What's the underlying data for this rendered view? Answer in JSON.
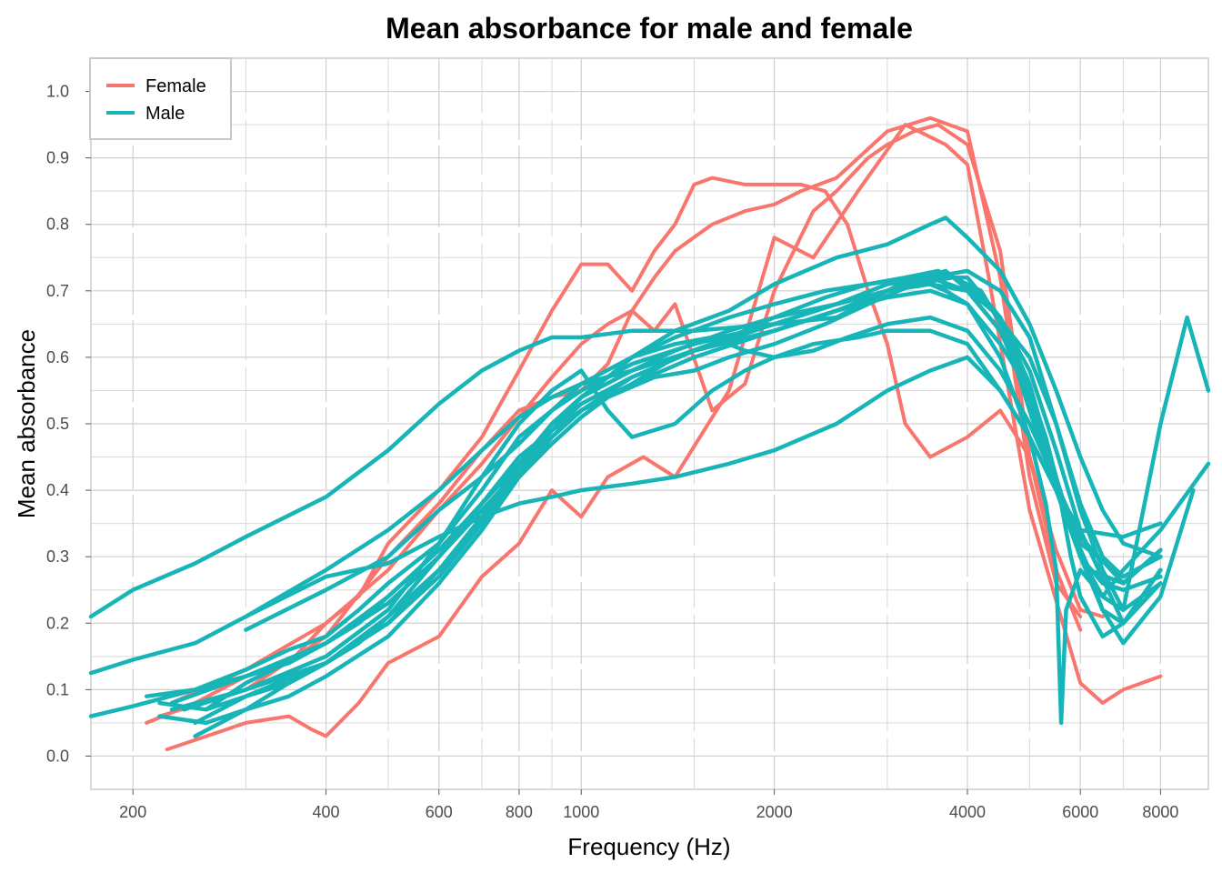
{
  "chart_data": {
    "type": "line",
    "title": "Mean absorbance for male and female",
    "xlabel": "Frequency (Hz)",
    "ylabel": "Mean absorbance",
    "x_scale": "log",
    "xlim": [
      172,
      9500
    ],
    "ylim": [
      -0.05,
      1.05
    ],
    "x_ticks": [
      200,
      400,
      600,
      800,
      1000,
      2000,
      4000,
      6000,
      8000
    ],
    "x_tick_labels": [
      "200",
      "400",
      "600",
      "800",
      "1000",
      "2000",
      "4000",
      "6000",
      "8000"
    ],
    "y_ticks": [
      0.0,
      0.1,
      0.2,
      0.3,
      0.4,
      0.5,
      0.6,
      0.7,
      0.8,
      0.9,
      1.0
    ],
    "y_tick_labels": [
      "0.0",
      "0.1",
      "0.2",
      "0.3",
      "0.4",
      "0.5",
      "0.6",
      "0.7",
      "0.8",
      "0.9",
      "1.0"
    ],
    "grid": true,
    "legend_position": "top-left",
    "colors": {
      "Female": "#F8766D",
      "Male": "#17B5B8"
    },
    "legend": [
      {
        "label": "Female",
        "color": "#F8766D"
      },
      {
        "label": "Male",
        "color": "#17B5B8"
      }
    ],
    "series": [
      {
        "group": "Female",
        "x": [
          226,
          300,
          350,
          380,
          400,
          450,
          500,
          600,
          700,
          800,
          900,
          1000,
          1100,
          1250,
          1400,
          1700,
          2000,
          2300,
          2700,
          3200,
          3700,
          4000,
          4300,
          5000,
          6000,
          6500,
          7000,
          8000
        ],
        "y": [
          0.01,
          0.05,
          0.06,
          0.04,
          0.03,
          0.08,
          0.14,
          0.18,
          0.27,
          0.32,
          0.4,
          0.36,
          0.42,
          0.45,
          0.42,
          0.55,
          0.78,
          0.75,
          0.85,
          0.95,
          0.92,
          0.89,
          0.73,
          0.37,
          0.11,
          0.08,
          0.1,
          0.12
        ]
      },
      {
        "group": "Female",
        "x": [
          210,
          250,
          300,
          350,
          400,
          450,
          500,
          600,
          700,
          800,
          900,
          1000,
          1100,
          1200,
          1300,
          1400,
          1500,
          1600,
          1800,
          2000,
          2200,
          2400,
          2600,
          2800,
          3000,
          3200,
          3500,
          4000,
          4500,
          5000,
          5500,
          6000,
          6500
        ],
        "y": [
          0.05,
          0.08,
          0.12,
          0.14,
          0.2,
          0.24,
          0.32,
          0.4,
          0.48,
          0.58,
          0.67,
          0.74,
          0.74,
          0.7,
          0.76,
          0.8,
          0.86,
          0.87,
          0.86,
          0.86,
          0.86,
          0.85,
          0.8,
          0.7,
          0.62,
          0.5,
          0.45,
          0.48,
          0.52,
          0.45,
          0.31,
          0.22,
          0.21
        ]
      },
      {
        "group": "Female",
        "x": [
          220,
          300,
          400,
          500,
          600,
          700,
          800,
          900,
          1000,
          1100,
          1200,
          1300,
          1400,
          1600,
          1800,
          2000,
          2300,
          2500,
          2800,
          3000,
          3300,
          3600,
          4000,
          4500,
          5000,
          5500,
          6000
        ],
        "y": [
          0.06,
          0.1,
          0.18,
          0.3,
          0.38,
          0.46,
          0.52,
          0.54,
          0.55,
          0.59,
          0.67,
          0.64,
          0.68,
          0.52,
          0.56,
          0.7,
          0.82,
          0.85,
          0.9,
          0.92,
          0.94,
          0.95,
          0.92,
          0.76,
          0.45,
          0.28,
          0.19
        ]
      },
      {
        "group": "Female",
        "x": [
          230,
          300,
          400,
          500,
          600,
          700,
          800,
          900,
          1000,
          1100,
          1200,
          1300,
          1400,
          1600,
          1800,
          2000,
          2200,
          2500,
          3000,
          3500,
          4000,
          4500,
          5000,
          5500,
          6000
        ],
        "y": [
          0.08,
          0.13,
          0.2,
          0.28,
          0.37,
          0.44,
          0.51,
          0.57,
          0.62,
          0.65,
          0.67,
          0.72,
          0.76,
          0.8,
          0.82,
          0.83,
          0.85,
          0.87,
          0.94,
          0.96,
          0.94,
          0.72,
          0.42,
          0.26,
          0.21
        ]
      },
      {
        "group": "Male",
        "x": [
          172,
          200,
          250,
          300,
          400,
          500,
          600,
          700,
          800,
          900,
          1000,
          1200,
          1500,
          2000,
          2500,
          3000,
          3700,
          4500,
          5000,
          5500,
          6000,
          6500,
          7000,
          8000,
          9000
        ],
        "y": [
          0.21,
          0.25,
          0.29,
          0.33,
          0.39,
          0.46,
          0.53,
          0.58,
          0.61,
          0.63,
          0.63,
          0.64,
          0.64,
          0.65,
          0.66,
          0.7,
          0.73,
          0.66,
          0.52,
          0.4,
          0.31,
          0.22,
          0.17,
          0.24,
          0.4
        ]
      },
      {
        "group": "Male",
        "x": [
          172,
          200,
          250,
          300,
          400,
          500,
          600,
          700,
          800,
          900,
          1000,
          1200,
          1500,
          2000,
          2500,
          3000,
          3500,
          4000,
          4500,
          5000,
          5500,
          6000,
          6500,
          7000,
          8000,
          8800,
          9500
        ],
        "y": [
          0.125,
          0.145,
          0.17,
          0.21,
          0.28,
          0.34,
          0.4,
          0.46,
          0.51,
          0.54,
          0.56,
          0.58,
          0.61,
          0.64,
          0.67,
          0.7,
          0.72,
          0.73,
          0.7,
          0.63,
          0.5,
          0.37,
          0.28,
          0.22,
          0.5,
          0.66,
          0.55
        ]
      },
      {
        "group": "Male",
        "x": [
          172,
          200,
          250,
          300,
          350,
          400,
          450,
          500,
          600,
          700,
          800,
          900,
          1000,
          1200,
          1500,
          2000,
          2500,
          3000,
          3500,
          4000,
          4500,
          5000,
          5500,
          6000,
          6500,
          7000,
          8000,
          9500
        ],
        "y": [
          0.06,
          0.075,
          0.1,
          0.13,
          0.16,
          0.18,
          0.22,
          0.26,
          0.32,
          0.4,
          0.48,
          0.52,
          0.55,
          0.59,
          0.62,
          0.65,
          0.68,
          0.71,
          0.72,
          0.7,
          0.64,
          0.54,
          0.4,
          0.3,
          0.24,
          0.28,
          0.34,
          0.44
        ]
      },
      {
        "group": "Male",
        "x": [
          300,
          400,
          500,
          600,
          700,
          800,
          900,
          1000,
          1200,
          1400,
          1700,
          2000,
          2500,
          3000,
          3500,
          3700,
          4000,
          4500,
          5000,
          5500,
          6000,
          6500,
          7000,
          8000
        ],
        "y": [
          0.19,
          0.25,
          0.3,
          0.37,
          0.42,
          0.47,
          0.52,
          0.56,
          0.6,
          0.64,
          0.67,
          0.71,
          0.75,
          0.77,
          0.8,
          0.81,
          0.78,
          0.73,
          0.65,
          0.55,
          0.45,
          0.37,
          0.32,
          0.3
        ]
      },
      {
        "group": "Male",
        "x": [
          300,
          400,
          500,
          600,
          700,
          800,
          900,
          1000,
          1200,
          1400,
          1700,
          2000,
          2500,
          3000,
          3500,
          4000,
          4500,
          5000,
          5500,
          6000,
          7000,
          8000
        ],
        "y": [
          0.21,
          0.27,
          0.29,
          0.33,
          0.36,
          0.38,
          0.39,
          0.4,
          0.41,
          0.42,
          0.44,
          0.46,
          0.5,
          0.55,
          0.58,
          0.6,
          0.55,
          0.48,
          0.4,
          0.34,
          0.33,
          0.35
        ]
      },
      {
        "group": "Male",
        "x": [
          230,
          300,
          400,
          500,
          600,
          700,
          800,
          900,
          1000,
          1100,
          1200,
          1400,
          1600,
          1800,
          2000,
          2300,
          2700,
          3000,
          3500,
          4000,
          4500,
          5000,
          5500,
          6000,
          7000,
          8000
        ],
        "y": [
          0.07,
          0.1,
          0.15,
          0.22,
          0.32,
          0.42,
          0.5,
          0.55,
          0.58,
          0.52,
          0.48,
          0.5,
          0.55,
          0.58,
          0.6,
          0.62,
          0.63,
          0.64,
          0.64,
          0.62,
          0.55,
          0.48,
          0.4,
          0.32,
          0.27,
          0.3
        ]
      },
      {
        "group": "Male",
        "x": [
          250,
          300,
          400,
          500,
          600,
          700,
          800,
          900,
          1000,
          1200,
          1400,
          1700,
          2000,
          2400,
          2800,
          3200,
          3600,
          4000,
          4500,
          5000,
          5500,
          6000,
          7000,
          8000
        ],
        "y": [
          0.05,
          0.09,
          0.14,
          0.21,
          0.3,
          0.38,
          0.45,
          0.49,
          0.52,
          0.56,
          0.6,
          0.63,
          0.66,
          0.69,
          0.71,
          0.72,
          0.73,
          0.71,
          0.66,
          0.58,
          0.46,
          0.34,
          0.2,
          0.28
        ]
      },
      {
        "group": "Male",
        "x": [
          260,
          300,
          400,
          500,
          600,
          700,
          800,
          900,
          1000,
          1200,
          1400,
          1700,
          2000,
          2500,
          3000,
          3300,
          3700,
          4000,
          4500,
          5000,
          5300,
          5700,
          6000,
          6500,
          7000,
          8000
        ],
        "y": [
          0.07,
          0.11,
          0.17,
          0.24,
          0.31,
          0.38,
          0.44,
          0.5,
          0.54,
          0.58,
          0.61,
          0.64,
          0.66,
          0.68,
          0.7,
          0.72,
          0.7,
          0.68,
          0.62,
          0.55,
          0.48,
          0.36,
          0.3,
          0.26,
          0.25,
          0.27
        ]
      },
      {
        "group": "Male",
        "x": [
          220,
          260,
          300,
          350,
          400,
          500,
          600,
          700,
          800,
          900,
          1000,
          1200,
          1500,
          2000,
          2500,
          3000,
          3500,
          4000,
          4500,
          5000,
          5500,
          5800,
          6000,
          6500,
          7000,
          8000
        ],
        "y": [
          0.06,
          0.05,
          0.07,
          0.09,
          0.12,
          0.18,
          0.26,
          0.34,
          0.42,
          0.48,
          0.52,
          0.56,
          0.6,
          0.64,
          0.67,
          0.7,
          0.72,
          0.72,
          0.66,
          0.56,
          0.42,
          0.3,
          0.24,
          0.18,
          0.2,
          0.26
        ]
      },
      {
        "group": "Male",
        "x": [
          210,
          250,
          300,
          350,
          400,
          450,
          500,
          600,
          700,
          800,
          900,
          1000,
          1200,
          1500,
          2000,
          2500,
          3000,
          3500,
          4000,
          4500,
          5000,
          5300,
          5500,
          5600,
          5700,
          6000,
          6500,
          7000,
          8000
        ],
        "y": [
          0.09,
          0.1,
          0.12,
          0.14,
          0.17,
          0.2,
          0.24,
          0.31,
          0.38,
          0.44,
          0.49,
          0.53,
          0.57,
          0.61,
          0.64,
          0.67,
          0.69,
          0.7,
          0.68,
          0.6,
          0.48,
          0.38,
          0.28,
          0.05,
          0.22,
          0.28,
          0.24,
          0.22,
          0.26
        ]
      },
      {
        "group": "Male",
        "x": [
          230,
          300,
          400,
          500,
          600,
          700,
          800,
          900,
          1000,
          1200,
          1500,
          2000,
          2500,
          3000,
          3500,
          4000,
          4500,
          5000,
          5500,
          6000,
          6500,
          7000,
          8000
        ],
        "y": [
          0.08,
          0.12,
          0.17,
          0.23,
          0.3,
          0.37,
          0.43,
          0.48,
          0.52,
          0.57,
          0.61,
          0.65,
          0.68,
          0.7,
          0.71,
          0.7,
          0.64,
          0.55,
          0.42,
          0.3,
          0.22,
          0.2,
          0.28
        ]
      },
      {
        "group": "Male",
        "x": [
          240,
          300,
          400,
          500,
          600,
          700,
          800,
          900,
          1000,
          1100,
          1200,
          1400,
          1700,
          2000,
          2400,
          2800,
          3300,
          3800,
          4300,
          5000,
          5500,
          6000,
          6500,
          7000,
          8000
        ],
        "y": [
          0.07,
          0.1,
          0.14,
          0.2,
          0.27,
          0.35,
          0.43,
          0.49,
          0.54,
          0.57,
          0.6,
          0.63,
          0.66,
          0.68,
          0.7,
          0.71,
          0.72,
          0.72,
          0.68,
          0.6,
          0.5,
          0.38,
          0.3,
          0.27,
          0.3
        ]
      },
      {
        "group": "Male",
        "x": [
          220,
          260,
          300,
          350,
          400,
          500,
          600,
          700,
          800,
          900,
          1000,
          1100,
          1200,
          1400,
          1600,
          1800,
          2000,
          2300,
          2600,
          3000,
          3500,
          4000,
          4500,
          5000,
          5500,
          6000,
          7000,
          8000
        ],
        "y": [
          0.08,
          0.07,
          0.09,
          0.11,
          0.14,
          0.2,
          0.28,
          0.36,
          0.44,
          0.5,
          0.54,
          0.57,
          0.6,
          0.62,
          0.63,
          0.61,
          0.6,
          0.61,
          0.63,
          0.65,
          0.66,
          0.64,
          0.58,
          0.5,
          0.41,
          0.33,
          0.26,
          0.31
        ]
      },
      {
        "group": "Male",
        "x": [
          250,
          300,
          350,
          400,
          450,
          500,
          600,
          700,
          800,
          900,
          1000,
          1100,
          1300,
          1500,
          1700,
          2000,
          2400,
          2800,
          3300,
          3800,
          4200,
          4700,
          5200,
          5700,
          6200,
          7000,
          8000
        ],
        "y": [
          0.03,
          0.07,
          0.11,
          0.14,
          0.17,
          0.21,
          0.28,
          0.35,
          0.42,
          0.47,
          0.51,
          0.54,
          0.57,
          0.58,
          0.6,
          0.62,
          0.65,
          0.68,
          0.71,
          0.72,
          0.7,
          0.62,
          0.5,
          0.36,
          0.28,
          0.26,
          0.31
        ]
      }
    ]
  }
}
